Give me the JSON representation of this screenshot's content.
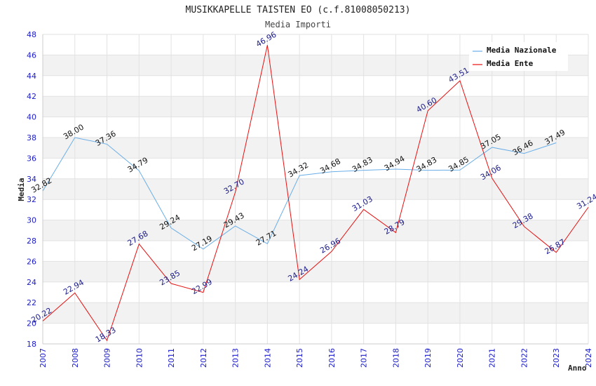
{
  "chart_data": {
    "type": "line",
    "title": "MUSIKKAPELLE TAISTEN EO (c.f.81008050213)",
    "subtitle": "Media Importi",
    "xlabel": "Anno",
    "ylabel": "Media",
    "ylim": [
      18,
      48
    ],
    "yticks": [
      "18",
      "20",
      "22",
      "24",
      "26",
      "28",
      "30",
      "32",
      "34",
      "36",
      "38",
      "40",
      "42",
      "44",
      "46",
      "48"
    ],
    "x": [
      "2007",
      "2008",
      "2009",
      "2010",
      "2011",
      "2012",
      "2013",
      "2014",
      "2015",
      "2016",
      "2017",
      "2018",
      "2019",
      "2020",
      "2021",
      "2022",
      "2023",
      "2024"
    ],
    "legend_position": "top-right",
    "series": [
      {
        "name": "Media Nazionale",
        "color": "#6aaee8",
        "values": [
          32.82,
          38.0,
          37.36,
          34.79,
          29.24,
          27.19,
          29.43,
          27.71,
          34.32,
          34.68,
          34.83,
          34.94,
          34.83,
          34.85,
          37.05,
          36.46,
          37.49,
          null
        ],
        "labels": [
          "32.82",
          "38.00",
          "37.36",
          "34.79",
          "29.24",
          "27.19",
          "29.43",
          "27.71",
          "34.32",
          "34.68",
          "34.83",
          "34.94",
          "34.83",
          "34.85",
          "37.05",
          "36.46",
          "37.49",
          ""
        ]
      },
      {
        "name": "Media Ente",
        "color": "#e81010",
        "values": [
          20.22,
          22.94,
          18.33,
          27.68,
          23.85,
          22.99,
          32.7,
          46.96,
          24.24,
          26.96,
          31.03,
          28.79,
          40.6,
          43.51,
          34.06,
          29.38,
          26.87,
          31.24
        ],
        "labels": [
          "20.22",
          "22.94",
          "18.33",
          "27.68",
          "23.85",
          "22.99",
          "32.70",
          "46.96",
          "24.24",
          "26.96",
          "31.03",
          "28.79",
          "40.60",
          "43.51",
          "34.06",
          "29.38",
          "26.87",
          "31.24"
        ]
      }
    ]
  }
}
